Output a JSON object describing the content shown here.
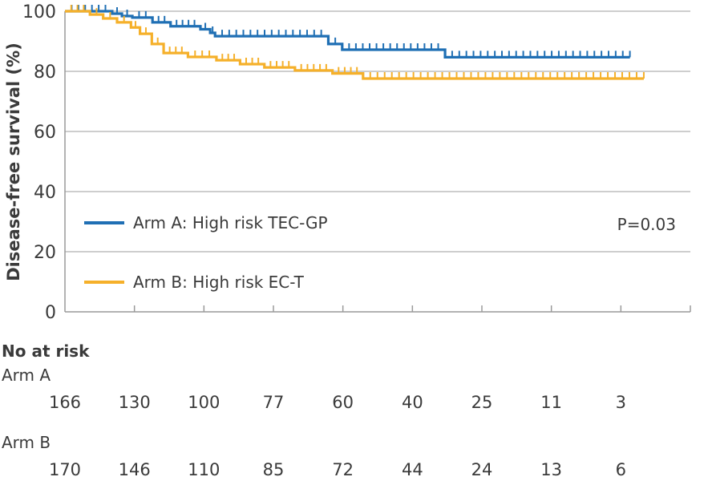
{
  "chart_data": {
    "type": "line",
    "subtype": "kaplan-meier",
    "title": "",
    "xlabel": "",
    "ylabel": "Disease-free survival (%)",
    "ylim": [
      0,
      100
    ],
    "yticks": [
      0,
      20,
      40,
      60,
      80,
      100
    ],
    "xlim": [
      0,
      9
    ],
    "xticks": [
      0,
      1,
      2,
      3,
      4,
      5,
      6,
      7,
      8,
      9
    ],
    "xtick_labels_shown": false,
    "grid": "horizontal",
    "legend_position": "lower-left",
    "annotation": "P=0.03",
    "series": [
      {
        "name": "Arm A: High risk TEC-GP",
        "color": "#1f6fb4",
        "steps": [
          [
            0,
            100
          ],
          [
            0.68,
            99.2
          ],
          [
            0.82,
            98.4
          ],
          [
            0.97,
            97.9
          ],
          [
            1.26,
            96.3
          ],
          [
            1.52,
            95.0
          ],
          [
            1.95,
            94.0
          ],
          [
            2.09,
            92.8
          ],
          [
            2.16,
            91.7
          ],
          [
            3.79,
            89.1
          ],
          [
            3.99,
            87.2
          ],
          [
            5.47,
            84.7
          ],
          [
            8.13,
            84.7
          ]
        ]
      },
      {
        "name": "Arm B: High risk EC-T",
        "color": "#f5b02a",
        "steps": [
          [
            0,
            100
          ],
          [
            0.36,
            98.9
          ],
          [
            0.55,
            97.6
          ],
          [
            0.75,
            96.3
          ],
          [
            0.95,
            94.6
          ],
          [
            1.08,
            92.5
          ],
          [
            1.25,
            89.1
          ],
          [
            1.42,
            86.1
          ],
          [
            1.77,
            84.8
          ],
          [
            2.18,
            83.7
          ],
          [
            2.52,
            82.4
          ],
          [
            2.87,
            81.3
          ],
          [
            3.31,
            80.3
          ],
          [
            3.85,
            79.3
          ],
          [
            4.29,
            77.6
          ],
          [
            8.33,
            77.6
          ]
        ]
      }
    ],
    "at_risk": {
      "title": "No at risk",
      "rows": [
        {
          "label": "Arm A",
          "values": [
            166,
            130,
            100,
            77,
            60,
            40,
            25,
            11,
            3
          ]
        },
        {
          "label": "Arm B",
          "values": [
            170,
            146,
            110,
            85,
            72,
            44,
            24,
            13,
            6
          ]
        }
      ]
    }
  },
  "colors": {
    "axis": "#9a9a9a",
    "grid": "#bdbdbd",
    "text": "#3a3a3a"
  }
}
